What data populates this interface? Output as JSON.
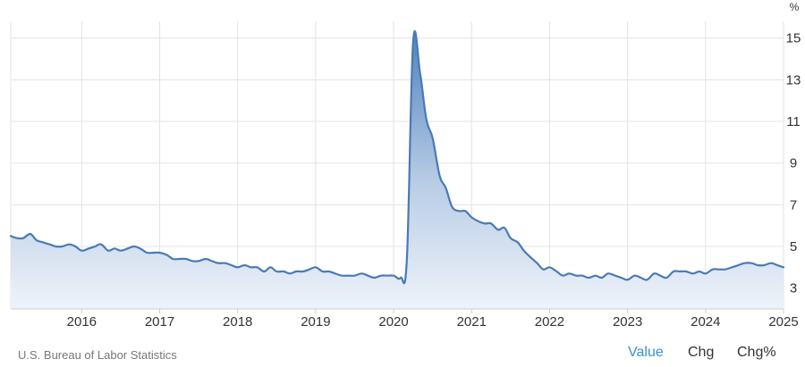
{
  "footer": {
    "source": "U.S. Bureau of Labor Statistics",
    "tabs": {
      "value": "Value",
      "chg": "Chg",
      "chgpct": "Chg%"
    }
  },
  "colors": {
    "line": "#4a7ab6",
    "fill_top": "#4f82bf",
    "fill_bottom": "#eef3fa",
    "active_tab": "#3a8fd0",
    "grid": "#e3e3e3"
  },
  "chart_data": {
    "type": "area",
    "unit_label": "%",
    "xlabel": "",
    "ylabel": "",
    "title": "",
    "x_ticks": [
      "2016",
      "2017",
      "2018",
      "2019",
      "2020",
      "2021",
      "2022",
      "2023",
      "2024",
      "2025"
    ],
    "y_ticks": [
      3,
      5,
      7,
      9,
      11,
      13,
      15
    ],
    "xlim": [
      2015.09,
      2025.0
    ],
    "ylim": [
      2.0,
      15.8
    ],
    "y_axis_side": "right",
    "grid": true,
    "series": [
      {
        "x": [
          2015.09,
          2015.17,
          2015.25,
          2015.34,
          2015.42,
          2015.5,
          2015.59,
          2015.67,
          2015.75,
          2015.84,
          2015.92,
          2016.0,
          2016.09,
          2016.17,
          2016.25,
          2016.34,
          2016.42,
          2016.5,
          2016.59,
          2016.67,
          2016.75,
          2016.84,
          2016.92,
          2017.0,
          2017.09,
          2017.17,
          2017.25,
          2017.34,
          2017.42,
          2017.5,
          2017.59,
          2017.67,
          2017.75,
          2017.84,
          2017.92,
          2018.0,
          2018.09,
          2018.17,
          2018.25,
          2018.34,
          2018.42,
          2018.5,
          2018.59,
          2018.67,
          2018.75,
          2018.84,
          2018.92,
          2019.0,
          2019.09,
          2019.17,
          2019.25,
          2019.34,
          2019.42,
          2019.5,
          2019.59,
          2019.67,
          2019.75,
          2019.84,
          2019.92,
          2020.0,
          2020.09,
          2020.17,
          2020.25,
          2020.34,
          2020.42,
          2020.5,
          2020.59,
          2020.67,
          2020.75,
          2020.84,
          2020.92,
          2021.0,
          2021.09,
          2021.17,
          2021.25,
          2021.34,
          2021.42,
          2021.5,
          2021.59,
          2021.67,
          2021.75,
          2021.84,
          2021.92,
          2022.0,
          2022.09,
          2022.17,
          2022.25,
          2022.34,
          2022.42,
          2022.5,
          2022.59,
          2022.67,
          2022.75,
          2022.84,
          2022.92,
          2023.0,
          2023.09,
          2023.17,
          2023.25,
          2023.34,
          2023.42,
          2023.5,
          2023.59,
          2023.67,
          2023.75,
          2023.84,
          2023.92,
          2024.0,
          2024.09,
          2024.17,
          2024.25,
          2024.34,
          2024.42,
          2024.5,
          2024.59,
          2024.67,
          2024.75,
          2024.84,
          2024.92,
          2025.0
        ],
        "y": [
          5.5,
          5.4,
          5.4,
          5.6,
          5.3,
          5.2,
          5.1,
          5.0,
          5.0,
          5.1,
          5.0,
          4.8,
          4.9,
          5.0,
          5.1,
          4.8,
          4.9,
          4.8,
          4.9,
          5.0,
          4.9,
          4.7,
          4.7,
          4.7,
          4.6,
          4.4,
          4.4,
          4.4,
          4.3,
          4.3,
          4.4,
          4.3,
          4.2,
          4.2,
          4.1,
          4.0,
          4.1,
          4.0,
          4.0,
          3.8,
          4.0,
          3.8,
          3.8,
          3.7,
          3.8,
          3.8,
          3.9,
          4.0,
          3.8,
          3.8,
          3.7,
          3.6,
          3.6,
          3.6,
          3.7,
          3.6,
          3.5,
          3.6,
          3.6,
          3.6,
          3.5,
          4.4,
          14.8,
          13.3,
          11.1,
          10.2,
          8.4,
          7.8,
          6.9,
          6.7,
          6.7,
          6.4,
          6.2,
          6.1,
          6.1,
          5.8,
          5.9,
          5.4,
          5.2,
          4.8,
          4.5,
          4.2,
          3.9,
          4.0,
          3.8,
          3.6,
          3.7,
          3.6,
          3.6,
          3.5,
          3.6,
          3.5,
          3.7,
          3.6,
          3.5,
          3.4,
          3.6,
          3.5,
          3.4,
          3.7,
          3.6,
          3.5,
          3.8,
          3.8,
          3.8,
          3.7,
          3.8,
          3.7,
          3.9,
          3.9,
          3.9,
          4.0,
          4.1,
          4.2,
          4.2,
          4.1,
          4.1,
          4.2,
          4.1,
          4.0
        ]
      }
    ]
  }
}
